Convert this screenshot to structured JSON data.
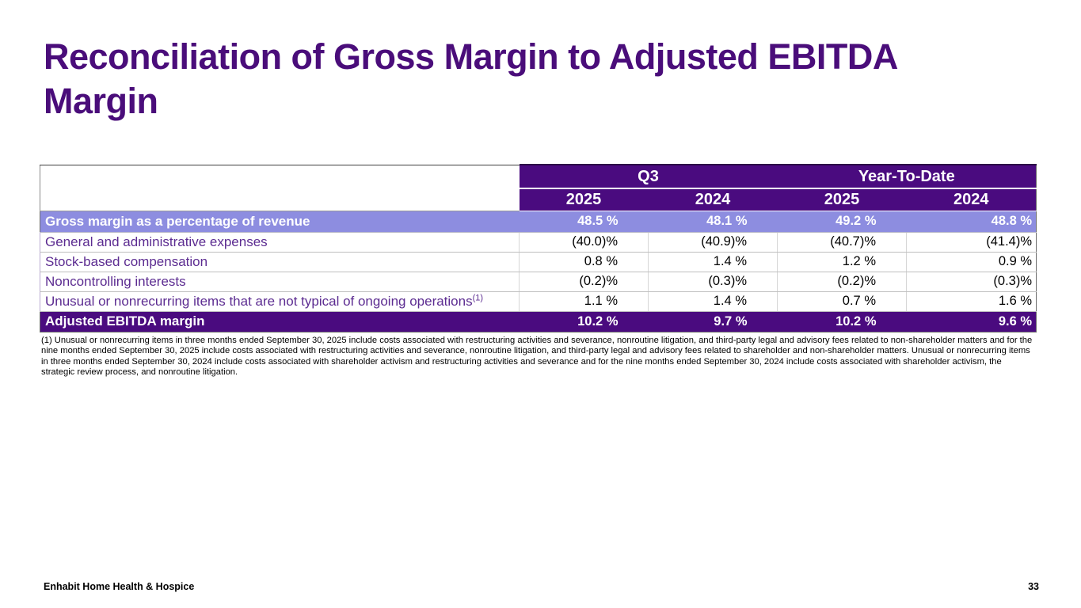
{
  "title": "Reconciliation of Gross Margin to Adjusted EBITDA Margin",
  "table": {
    "column_groups": [
      {
        "label": "Q3"
      },
      {
        "label": "Year-To-Date"
      }
    ],
    "year_headers": [
      "2025",
      "2024",
      "2025",
      "2024"
    ],
    "rows": [
      {
        "label": "Gross margin as a percentage of revenue",
        "superscript": "",
        "values": [
          "48.5 %",
          "48.1 %",
          "49.2 %",
          "48.8 %"
        ],
        "style": "highlight"
      },
      {
        "label": "General and administrative expenses",
        "superscript": "",
        "values": [
          "(40.0)%",
          "(40.9)%",
          "(40.7)%",
          "(41.4)%"
        ],
        "style": "normal"
      },
      {
        "label": "Stock-based compensation",
        "superscript": "",
        "values": [
          "0.8 %",
          "1.4 %",
          "1.2 %",
          "0.9 %"
        ],
        "style": "normal"
      },
      {
        "label": "Noncontrolling interests",
        "superscript": "",
        "values": [
          "(0.2)%",
          "(0.3)%",
          "(0.2)%",
          "(0.3)%"
        ],
        "style": "normal"
      },
      {
        "label": "Unusual or nonrecurring items that are not typical of ongoing operations",
        "superscript": "(1)",
        "values": [
          "1.1 %",
          "1.4 %",
          "0.7 %",
          "1.6 %"
        ],
        "style": "normal"
      },
      {
        "label": "Adjusted EBITDA margin",
        "superscript": "",
        "values": [
          "10.2 %",
          "9.7 %",
          "10.2 %",
          "9.6 %"
        ],
        "style": "total"
      }
    ]
  },
  "footnote": "(1) Unusual or nonrecurring items in three months ended September 30, 2025 include costs associated with restructuring activities and severance, nonroutine litigation, and third-party legal and advisory fees related to non-shareholder matters and for the nine months ended September 30, 2025 include costs associated with restructuring activities and severance, nonroutine litigation, and third-party legal and advisory fees related to shareholder and non-shareholder matters. Unusual or nonrecurring items in three months ended September 30, 2024 include costs associated with shareholder activism and restructuring activities and severance and for the nine months ended September 30, 2024 include costs associated with shareholder activism, the strategic review process, and nonroutine litigation.",
  "footer": {
    "company": "Enhabit Home Health & Hospice",
    "page_number": "33"
  },
  "colors": {
    "title_purple": "#4a0d7a",
    "header_purple": "#4a0b7f",
    "highlight_lavender": "#8d8de0",
    "label_purple": "#5c2c91"
  }
}
